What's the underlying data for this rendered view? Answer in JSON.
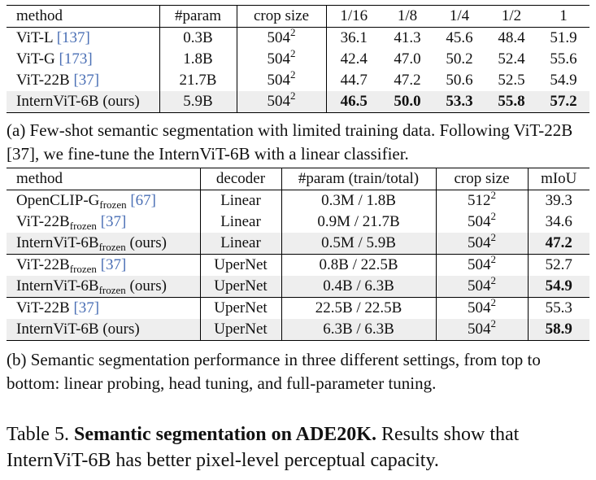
{
  "table_a": {
    "headers": [
      "method",
      "#param",
      "crop size",
      "1/16",
      "1/8",
      "1/4",
      "1/2",
      "1"
    ],
    "rows": [
      {
        "name": "ViT-L",
        "cite": "[137]",
        "param": "0.3B",
        "crop": "504",
        "crop_exp": "2",
        "v": [
          "36.1",
          "41.3",
          "45.6",
          "48.4",
          "51.9"
        ]
      },
      {
        "name": "ViT-G",
        "cite": "[173]",
        "param": "1.8B",
        "crop": "504",
        "crop_exp": "2",
        "v": [
          "42.4",
          "47.0",
          "50.2",
          "52.4",
          "55.6"
        ]
      },
      {
        "name": "ViT-22B",
        "cite": "[37]",
        "param": "21.7B",
        "crop": "504",
        "crop_exp": "2",
        "v": [
          "44.7",
          "47.2",
          "50.6",
          "52.5",
          "54.9"
        ]
      },
      {
        "name": "InternViT-6B (ours)",
        "cite": "",
        "param": "5.9B",
        "crop": "504",
        "crop_exp": "2",
        "v": [
          "46.5",
          "50.0",
          "53.3",
          "55.8",
          "57.2"
        ]
      }
    ],
    "caption": "(a) Few-shot semantic segmentation with limited training data. Following ViT-22B [37], we fine-tune the InternViT-6B with a linear classifier."
  },
  "table_b": {
    "headers": [
      "method",
      "decoder",
      "#param (train/total)",
      "crop size",
      "mIoU"
    ],
    "rows": [
      {
        "name": "OpenCLIP-G",
        "sub": "frozen",
        "cite": "[67]",
        "suffix": "",
        "decoder": "Linear",
        "param": "0.3M / 1.8B",
        "crop": "512",
        "crop_exp": "2",
        "miou": "39.3"
      },
      {
        "name": "ViT-22B",
        "sub": "frozen",
        "cite": "[37]",
        "suffix": "",
        "decoder": "Linear",
        "param": "0.9M / 21.7B",
        "crop": "504",
        "crop_exp": "2",
        "miou": "34.6"
      },
      {
        "name": "InternViT-6B",
        "sub": "frozen",
        "cite": "",
        "suffix": "(ours)",
        "decoder": "Linear",
        "param": "0.5M / 5.9B",
        "crop": "504",
        "crop_exp": "2",
        "miou": "47.2"
      },
      {
        "name": "ViT-22B",
        "sub": "frozen",
        "cite": "[37]",
        "suffix": "",
        "decoder": "UperNet",
        "param": "0.8B / 22.5B",
        "crop": "504",
        "crop_exp": "2",
        "miou": "52.7"
      },
      {
        "name": "InternViT-6B",
        "sub": "frozen",
        "cite": "",
        "suffix": "(ours)",
        "decoder": "UperNet",
        "param": "0.4B / 6.3B",
        "crop": "504",
        "crop_exp": "2",
        "miou": "54.9"
      },
      {
        "name": "ViT-22B",
        "sub": "",
        "cite": "[37]",
        "suffix": "",
        "decoder": "UperNet",
        "param": "22.5B / 22.5B",
        "crop": "504",
        "crop_exp": "2",
        "miou": "55.3"
      },
      {
        "name": "InternViT-6B (ours)",
        "sub": "",
        "cite": "",
        "suffix": "",
        "decoder": "UperNet",
        "param": "6.3B / 6.3B",
        "crop": "504",
        "crop_exp": "2",
        "miou": "58.9"
      }
    ],
    "caption": "(b) Semantic segmentation performance in three different settings, from top to bottom: linear probing, head tuning, and full-parameter tuning."
  },
  "table_caption": {
    "label": "Table 5.",
    "title": "Semantic segmentation on ADE20K.",
    "text": "Results show that InternViT-6B has better pixel-level perceptual capacity."
  }
}
